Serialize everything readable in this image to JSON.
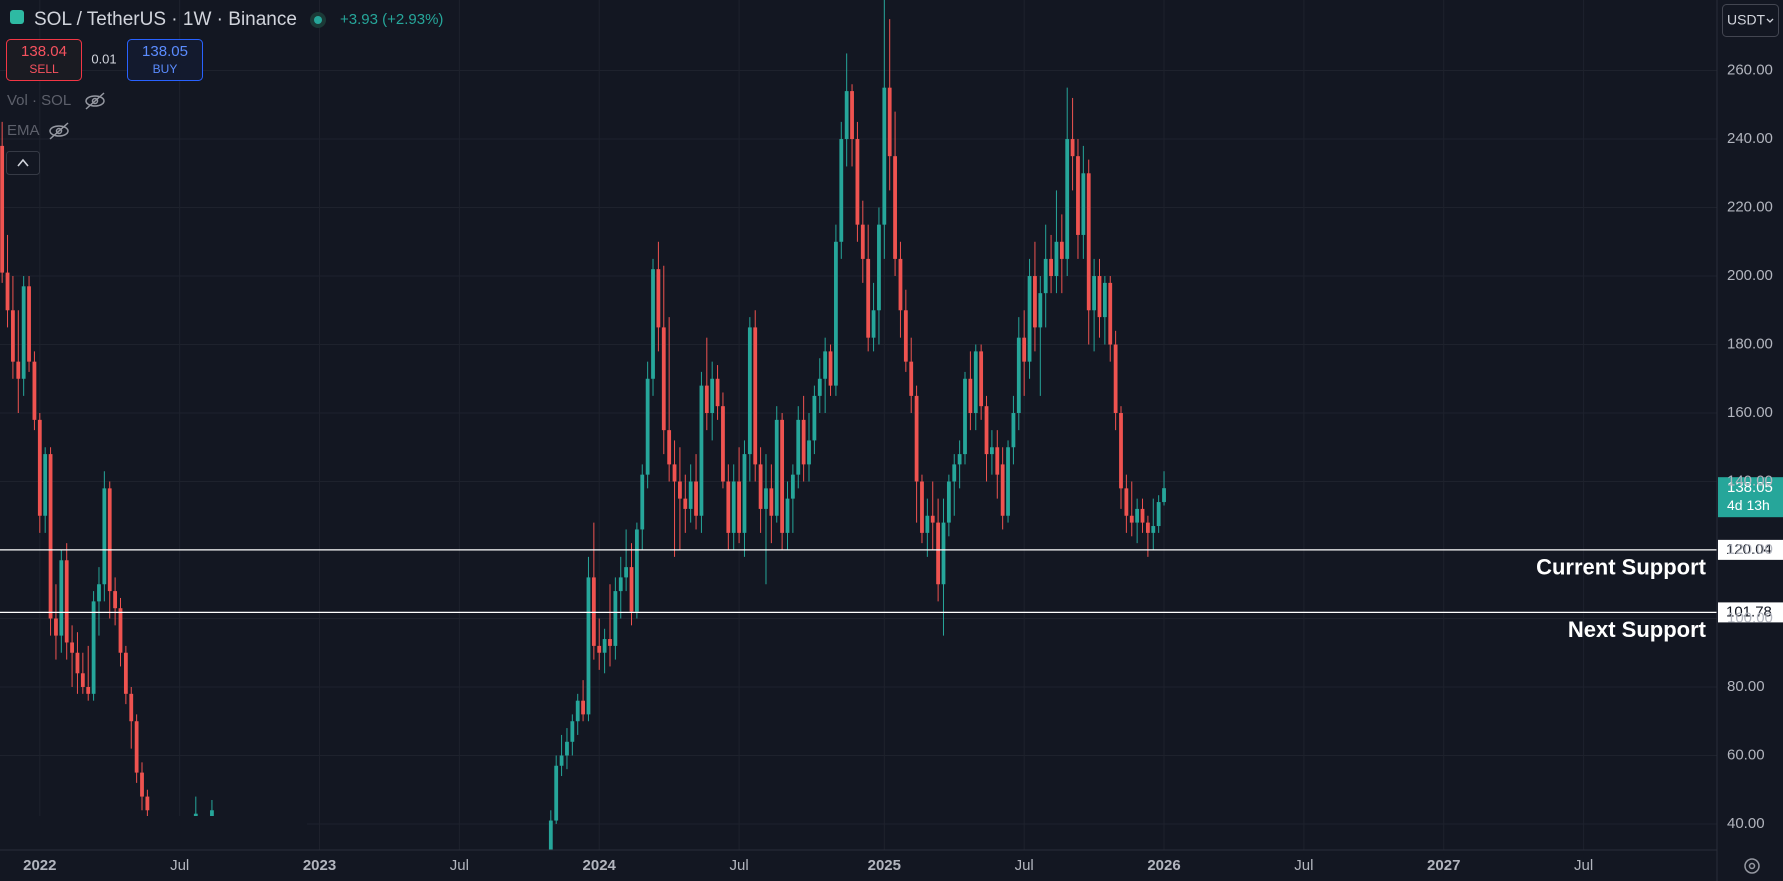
{
  "toolbar": {
    "symbol": "SOL / TetherUS · 1W · Binance",
    "change": "+3.93 (+2.93%)",
    "sell": {
      "price": 138.04,
      "label": "SELL"
    },
    "spread": 0.01,
    "buy": {
      "price": 138.05,
      "label": "BUY"
    },
    "indicators": [
      "Vol · SOL",
      "EMA"
    ],
    "currency": "USDT"
  },
  "chart_data": {
    "type": "candlestick",
    "up_color": "#26a69a",
    "down_color": "#ef5350",
    "ohlc": [
      [
        238,
        245,
        198,
        201
      ],
      [
        201,
        212,
        185,
        190
      ],
      [
        190,
        200,
        170,
        175
      ],
      [
        175,
        190,
        160,
        170
      ],
      [
        170,
        200,
        165,
        197
      ],
      [
        197,
        200,
        172,
        175
      ],
      [
        175,
        178,
        155,
        158
      ],
      [
        158,
        160,
        125,
        130
      ],
      [
        130,
        150,
        125,
        148
      ],
      [
        148,
        150,
        95,
        100
      ],
      [
        100,
        110,
        88,
        95
      ],
      [
        95,
        120,
        90,
        117
      ],
      [
        117,
        122,
        88,
        93
      ],
      [
        93,
        98,
        80,
        90
      ],
      [
        90,
        96,
        78,
        84
      ],
      [
        84,
        90,
        78,
        80
      ],
      [
        80,
        92,
        76,
        78
      ],
      [
        78,
        108,
        76,
        105
      ],
      [
        105,
        115,
        95,
        110
      ],
      [
        110,
        143,
        105,
        138
      ],
      [
        138,
        140,
        100,
        108
      ],
      [
        108,
        112,
        98,
        103
      ],
      [
        103,
        106,
        86,
        90
      ],
      [
        90,
        92,
        75,
        78
      ],
      [
        78,
        80,
        62,
        70
      ],
      [
        70,
        72,
        52,
        55
      ],
      [
        55,
        58,
        44,
        48
      ],
      [
        48,
        50,
        38,
        44
      ],
      null,
      null,
      null,
      null,
      null,
      null,
      null,
      null,
      [
        41,
        48,
        38,
        43
      ],
      null,
      null,
      [
        42,
        47,
        39,
        44
      ],
      null,
      null,
      null,
      null,
      null,
      null,
      null,
      null,
      null,
      null,
      null,
      null,
      null,
      null,
      null,
      null,
      null,
      null,
      null,
      null,
      null,
      null,
      null,
      null,
      null,
      null,
      null,
      null,
      null,
      null,
      null,
      null,
      null,
      null,
      null,
      null,
      null,
      null,
      null,
      null,
      null,
      null,
      null,
      null,
      null,
      null,
      null,
      null,
      null,
      null,
      null,
      null,
      null,
      null,
      null,
      null,
      null,
      null,
      null,
      null,
      null,
      null,
      [
        30,
        44,
        28,
        41
      ],
      [
        41,
        60,
        40,
        57
      ],
      [
        57,
        66,
        54,
        60
      ],
      [
        60,
        68,
        56,
        64
      ],
      [
        64,
        72,
        60,
        70
      ],
      [
        70,
        78,
        66,
        76
      ],
      [
        76,
        82,
        70,
        72
      ],
      [
        72,
        118,
        70,
        112
      ],
      [
        112,
        128,
        88,
        92
      ],
      [
        92,
        100,
        85,
        90
      ],
      [
        90,
        97,
        84,
        94
      ],
      [
        94,
        110,
        86,
        92
      ],
      [
        92,
        112,
        88,
        108
      ],
      [
        108,
        118,
        100,
        112
      ],
      [
        112,
        126,
        108,
        115
      ],
      [
        115,
        122,
        98,
        102
      ],
      [
        102,
        128,
        100,
        126
      ],
      [
        126,
        145,
        120,
        142
      ],
      [
        142,
        175,
        138,
        170
      ],
      [
        170,
        205,
        165,
        202
      ],
      [
        202,
        210,
        178,
        185
      ],
      [
        185,
        203,
        148,
        155
      ],
      [
        155,
        188,
        140,
        145
      ],
      [
        145,
        152,
        118,
        140
      ],
      [
        140,
        150,
        120,
        135
      ],
      [
        135,
        142,
        125,
        132
      ],
      [
        132,
        145,
        128,
        140
      ],
      [
        140,
        148,
        126,
        130
      ],
      [
        130,
        172,
        125,
        168
      ],
      [
        168,
        182,
        155,
        160
      ],
      [
        160,
        175,
        152,
        170
      ],
      [
        170,
        174,
        158,
        162
      ],
      [
        162,
        166,
        138,
        140
      ],
      [
        140,
        145,
        120,
        125
      ],
      [
        125,
        145,
        120,
        140
      ],
      [
        140,
        150,
        122,
        125
      ],
      [
        125,
        152,
        118,
        148
      ],
      [
        148,
        188,
        140,
        185
      ],
      [
        185,
        190,
        140,
        145
      ],
      [
        145,
        150,
        125,
        132
      ],
      [
        132,
        148,
        110,
        138
      ],
      [
        138,
        145,
        122,
        130
      ],
      [
        130,
        162,
        128,
        158
      ],
      [
        158,
        160,
        120,
        125
      ],
      [
        125,
        140,
        120,
        135
      ],
      [
        135,
        145,
        125,
        142
      ],
      [
        142,
        162,
        138,
        158
      ],
      [
        158,
        165,
        140,
        145
      ],
      [
        145,
        160,
        140,
        152
      ],
      [
        152,
        168,
        148,
        165
      ],
      [
        165,
        176,
        160,
        170
      ],
      [
        170,
        182,
        160,
        178
      ],
      [
        178,
        180,
        165,
        168
      ],
      [
        168,
        215,
        165,
        210
      ],
      [
        210,
        245,
        205,
        240
      ],
      [
        240,
        265,
        232,
        254
      ],
      [
        254,
        256,
        232,
        240
      ],
      [
        240,
        245,
        210,
        215
      ],
      [
        215,
        222,
        198,
        205
      ],
      [
        205,
        215,
        178,
        182
      ],
      [
        182,
        198,
        178,
        190
      ],
      [
        190,
        220,
        180,
        215
      ],
      [
        215,
        295,
        205,
        255
      ],
      [
        255,
        275,
        225,
        235
      ],
      [
        235,
        248,
        200,
        205
      ],
      [
        205,
        210,
        182,
        190
      ],
      [
        190,
        196,
        172,
        175
      ],
      [
        175,
        182,
        160,
        165
      ],
      [
        165,
        168,
        128,
        140
      ],
      [
        140,
        142,
        122,
        125
      ],
      [
        125,
        135,
        118,
        130
      ],
      [
        130,
        140,
        120,
        128
      ],
      [
        128,
        135,
        105,
        110
      ],
      [
        110,
        135,
        95,
        128
      ],
      [
        128,
        142,
        124,
        140
      ],
      [
        140,
        148,
        130,
        145
      ],
      [
        145,
        152,
        138,
        148
      ],
      [
        148,
        172,
        145,
        170
      ],
      [
        170,
        178,
        155,
        160
      ],
      [
        160,
        180,
        155,
        178
      ],
      [
        178,
        180,
        158,
        162
      ],
      [
        162,
        165,
        140,
        148
      ],
      [
        148,
        155,
        142,
        150
      ],
      [
        150,
        155,
        135,
        142
      ],
      [
        145,
        150,
        126,
        130
      ],
      [
        130,
        152,
        128,
        150
      ],
      [
        150,
        165,
        145,
        160
      ],
      [
        160,
        188,
        155,
        182
      ],
      [
        182,
        190,
        165,
        175
      ],
      [
        175,
        205,
        170,
        200
      ],
      [
        200,
        210,
        178,
        185
      ],
      [
        185,
        200,
        165,
        195
      ],
      [
        195,
        215,
        185,
        205
      ],
      [
        205,
        212,
        195,
        200
      ],
      [
        200,
        225,
        195,
        210
      ],
      [
        210,
        218,
        195,
        205
      ],
      [
        205,
        255,
        200,
        240
      ],
      [
        240,
        252,
        225,
        235
      ],
      [
        235,
        240,
        205,
        212
      ],
      [
        212,
        238,
        205,
        230
      ],
      [
        230,
        234,
        180,
        190
      ],
      [
        190,
        205,
        178,
        200
      ],
      [
        200,
        205,
        182,
        188
      ],
      [
        188,
        200,
        180,
        198
      ],
      [
        198,
        200,
        175,
        180
      ],
      [
        180,
        184,
        155,
        160
      ],
      [
        160,
        162,
        132,
        138
      ],
      [
        138,
        142,
        125,
        130
      ],
      [
        130,
        140,
        124,
        128
      ],
      [
        128,
        135,
        122,
        132
      ],
      [
        132,
        135,
        125,
        128
      ],
      [
        128,
        130,
        118,
        125
      ],
      [
        125,
        135,
        120,
        127
      ],
      [
        127,
        136,
        125,
        134
      ],
      [
        134,
        143,
        133,
        138.05
      ]
    ],
    "xlim": [
      -0.4,
      318.8
    ],
    "xticks": [
      {
        "value": 7,
        "label": "2022"
      },
      {
        "value": 33,
        "label": "Jul"
      },
      {
        "value": 59,
        "label": "2023"
      },
      {
        "value": 85,
        "label": "Jul"
      },
      {
        "value": 111,
        "label": "2024"
      },
      {
        "value": 137,
        "label": "Jul"
      },
      {
        "value": 164,
        "label": "2025"
      },
      {
        "value": 190,
        "label": "Jul"
      },
      {
        "value": 216,
        "label": "2026"
      },
      {
        "value": 242,
        "label": "Jul"
      },
      {
        "value": 268,
        "label": "2027"
      },
      {
        "value": 294,
        "label": "Jul"
      }
    ],
    "ylim": [
      32.4,
      280.6
    ],
    "yticks": [
      {
        "value": 40,
        "label": "40.00"
      },
      {
        "value": 60,
        "label": "60.00"
      },
      {
        "value": 80,
        "label": "80.00"
      },
      {
        "value": 100,
        "label": "100.00"
      },
      {
        "value": 120,
        "label": "120.00"
      },
      {
        "value": 140,
        "label": "140.00"
      },
      {
        "value": 160,
        "label": "160.00"
      },
      {
        "value": 180,
        "label": "180.00"
      },
      {
        "value": 200,
        "label": "200.00"
      },
      {
        "value": 220,
        "label": "220.00"
      },
      {
        "value": 240,
        "label": "240.00"
      },
      {
        "value": 260,
        "label": "260.00"
      }
    ],
    "grid": true,
    "last_price": 138.05,
    "countdown": "4d 13h",
    "hlines": [
      {
        "value": 120.04,
        "label": "Current Support",
        "color": "#ffffff"
      },
      {
        "value": 101.78,
        "label": "Next Support",
        "color": "#ffffff"
      }
    ]
  }
}
